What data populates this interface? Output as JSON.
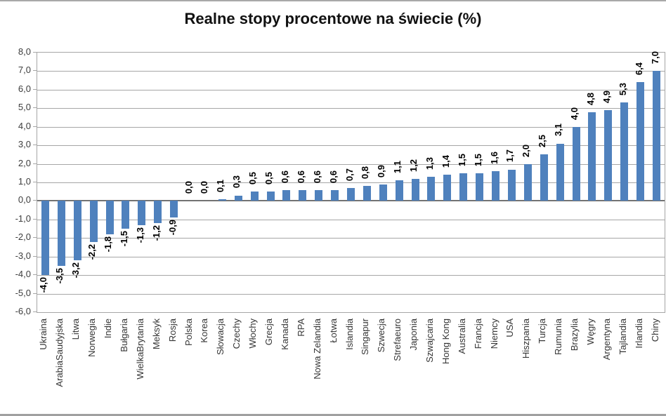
{
  "chart_data": {
    "type": "bar",
    "title": "Realne stopy procentowe na świecie (%)",
    "categories": [
      "Ukraina",
      "ArabiaSaudyjska",
      "Litwa",
      "Norwegia",
      "Indie",
      "Bułgaria",
      "WielkaBrytania",
      "Meksyk",
      "Rosja",
      "Polska",
      "Korea",
      "Słowacja",
      "Czechy",
      "Włochy",
      "Grecja",
      "Kanada",
      "RPA",
      "Nowa Zelandia",
      "Łotwa",
      "Islandia",
      "Singapur",
      "Szwecja",
      "Strefaeuro",
      "Japonia",
      "Szwajcaria",
      "Hong Kong",
      "Australia",
      "Francja",
      "Niemcy",
      "USA",
      "Hiszpania",
      "Turcja",
      "Rumunia",
      "Brazylia",
      "Węgry",
      "Argentyna",
      "Tajlandia",
      "Irlandia",
      "Chiny"
    ],
    "values": [
      -4.0,
      -3.5,
      -3.2,
      -2.2,
      -1.8,
      -1.5,
      -1.3,
      -1.2,
      -0.9,
      0.0,
      0.0,
      0.1,
      0.3,
      0.5,
      0.5,
      0.6,
      0.6,
      0.6,
      0.6,
      0.7,
      0.8,
      0.9,
      1.1,
      1.2,
      1.3,
      1.4,
      1.5,
      1.5,
      1.6,
      1.7,
      2.0,
      2.5,
      3.1,
      4.0,
      4.8,
      4.9,
      5.3,
      6.4,
      7.0
    ],
    "value_labels": [
      "-4,0",
      "-3,5",
      "-3,2",
      "-2,2",
      "-1,8",
      "-1,5",
      "-1,3",
      "-1,2",
      "-0,9",
      "0,0",
      "0,0",
      "0,1",
      "0,3",
      "0,5",
      "0,5",
      "0,6",
      "0,6",
      "0,6",
      "0,6",
      "0,7",
      "0,8",
      "0,9",
      "1,1",
      "1,2",
      "1,3",
      "1,4",
      "1,5",
      "1,5",
      "1,6",
      "1,7",
      "2,0",
      "2,5",
      "3,1",
      "4,0",
      "4,8",
      "4,9",
      "5,3",
      "6,4",
      "7,0"
    ],
    "xlabel": "",
    "ylabel": "",
    "y_axis": {
      "min": -6.0,
      "max": 8.0,
      "step": 1.0,
      "tick_labels": [
        "8,0",
        "7,0",
        "6,0",
        "5,0",
        "4,0",
        "3,0",
        "2,0",
        "1,0",
        "0,0",
        "-1,0",
        "-2,0",
        "-3,0",
        "-4,0",
        "-5,0",
        "-6,0"
      ]
    },
    "grid": true,
    "legend": false,
    "bar_color": "#4F81BD",
    "gridline_color": "#a6a6a6",
    "zero_line_color": "#737373",
    "plot_border_color": "#a6a6a6",
    "title_color": "#111111",
    "value_label_color": "#000000",
    "category_label_color": "#353535",
    "tick_label_color": "#3c3c3c"
  }
}
